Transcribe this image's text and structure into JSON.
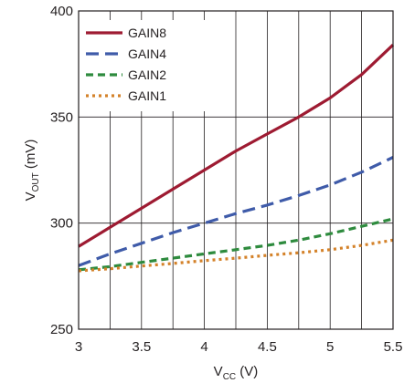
{
  "chart_data": {
    "type": "line",
    "title": "",
    "xlabel_main": "V",
    "xlabel_sub": "CC",
    "xlabel_unit": " (V)",
    "ylabel_main": "V",
    "ylabel_sub": "OUT",
    "ylabel_unit": " (mV)",
    "xlim": [
      3,
      5.5
    ],
    "ylim": [
      250,
      400
    ],
    "xticks": [
      3,
      3.5,
      4,
      4.5,
      5,
      5.5
    ],
    "xtick_labels": [
      "3",
      "3.5",
      "4",
      "4.5",
      "5",
      "5.5"
    ],
    "yticks": [
      250,
      300,
      350,
      400
    ],
    "ytick_labels": [
      "250",
      "300",
      "350",
      "400"
    ],
    "x_minor_step": 0.25,
    "grid": true,
    "legend_position": "top-left",
    "series": [
      {
        "name": "GAIN8",
        "color": "#9e1b32",
        "dash": "solid",
        "x": [
          3,
          3.25,
          3.5,
          3.75,
          4,
          4.25,
          4.5,
          4.75,
          5,
          5.25,
          5.5
        ],
        "y": [
          289,
          298,
          307,
          316,
          325,
          334,
          342,
          350,
          359,
          370,
          384
        ]
      },
      {
        "name": "GAIN4",
        "color": "#3f5ba9",
        "dash": "long-dash",
        "x": [
          3,
          3.25,
          3.5,
          3.75,
          4,
          4.25,
          4.5,
          4.75,
          5,
          5.25,
          5.5
        ],
        "y": [
          280,
          285.5,
          290.5,
          295.5,
          300,
          304.5,
          308.5,
          313,
          318,
          324,
          331
        ]
      },
      {
        "name": "GAIN2",
        "color": "#2e8b3e",
        "dash": "dash",
        "x": [
          3,
          3.25,
          3.5,
          3.75,
          4,
          4.25,
          4.5,
          4.75,
          5,
          5.25,
          5.5
        ],
        "y": [
          278,
          279.5,
          281.5,
          283.5,
          285.5,
          287.5,
          289.5,
          292,
          295,
          298.5,
          302
        ]
      },
      {
        "name": "GAIN1",
        "color": "#d4822a",
        "dash": "dot",
        "x": [
          3,
          3.25,
          3.5,
          3.75,
          4,
          4.25,
          4.5,
          4.75,
          5,
          5.25,
          5.5
        ],
        "y": [
          277.5,
          278.5,
          279.8,
          281,
          282.3,
          283.5,
          284.8,
          286,
          287.5,
          289.5,
          292
        ]
      }
    ]
  }
}
